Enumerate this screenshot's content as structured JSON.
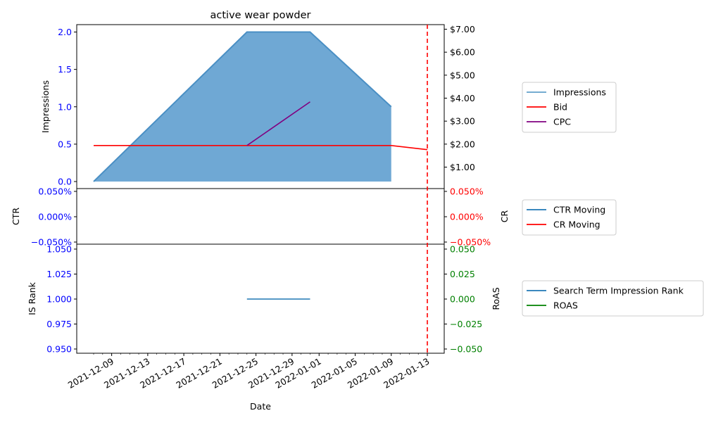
{
  "chart_data": [
    {
      "type": "area",
      "title": "active wear powder",
      "ylabel": "Impressions",
      "y2label": "",
      "ylim": [
        0,
        2.1
      ],
      "y2lim": [
        0.5,
        7.1
      ],
      "y_ticks": [
        "0.0",
        "0.5",
        "1.0",
        "1.5",
        "2.0"
      ],
      "y2_ticks": [
        "$1.00",
        "$2.00",
        "$3.00",
        "$4.00",
        "$5.00",
        "$6.00",
        "$7.00"
      ],
      "x": [
        "2021-12-07",
        "2021-12-24",
        "2021-12-31",
        "2022-01-09"
      ],
      "series": [
        {
          "name": "Impressions",
          "axis": "left",
          "color": "#1f77b4",
          "points": [
            [
              "2021-12-07",
              0
            ],
            [
              "2021-12-24",
              2
            ],
            [
              "2021-12-31",
              2
            ],
            [
              "2022-01-09",
              1
            ]
          ]
        },
        {
          "name": "Bid",
          "axis": "right",
          "color": "#ff0000",
          "points": [
            [
              "2021-12-07",
              1.94
            ],
            [
              "2022-01-09",
              1.94
            ],
            [
              "2022-01-13",
              1.76
            ]
          ]
        },
        {
          "name": "CPC",
          "axis": "right",
          "color": "#800080",
          "points": [
            [
              "2021-12-24",
              1.94
            ],
            [
              "2021-12-31",
              3.84
            ]
          ]
        }
      ],
      "legend": [
        "Impressions",
        "Bid",
        "CPC"
      ],
      "legend_position": "outside-right",
      "marker_date": "2022-01-13"
    },
    {
      "type": "line",
      "ylabel": "CTR",
      "y2label": "CR",
      "ylim": [
        -0.0005,
        0.0005
      ],
      "y_ticks": [
        "0.050%",
        "0.000%",
        "−0.050%"
      ],
      "y2_ticks": [
        "0.050%",
        "0.000%",
        "−0.050%"
      ],
      "series": [
        {
          "name": "CTR Moving",
          "axis": "left",
          "color": "#1f77b4",
          "points": []
        },
        {
          "name": "CR Moving",
          "axis": "right",
          "color": "#ff0000",
          "points": []
        }
      ],
      "legend": [
        "CTR Moving",
        "CR Moving"
      ],
      "legend_position": "outside-right",
      "marker_date": "2022-01-13"
    },
    {
      "type": "line",
      "ylabel": "IS Rank",
      "y2label": "RoAS",
      "xlabel": "Date",
      "ylim": [
        0.945,
        1.055
      ],
      "y2lim": [
        -0.055,
        0.055
      ],
      "y_ticks": [
        "1.050",
        "1.025",
        "1.000",
        "0.975",
        "0.950"
      ],
      "y2_ticks": [
        "0.050",
        "0.025",
        "0.000",
        "−0.025",
        "−0.050"
      ],
      "x_ticks": [
        "2021-12-09",
        "2021-12-13",
        "2021-12-17",
        "2021-12-21",
        "2021-12-25",
        "2021-12-29",
        "2022-01-01",
        "2022-01-05",
        "2022-01-09",
        "2022-01-13"
      ],
      "series": [
        {
          "name": "Search Term Impression Rank",
          "axis": "left",
          "color": "#1f77b4",
          "points": [
            [
              "2021-12-24",
              1.0
            ],
            [
              "2021-12-31",
              1.0
            ]
          ]
        },
        {
          "name": "ROAS",
          "axis": "right",
          "color": "#008000",
          "points": []
        }
      ],
      "legend": [
        "Search Term Impression Rank",
        "ROAS"
      ],
      "legend_position": "outside-right",
      "marker_date": "2022-01-13"
    }
  ],
  "colors": {
    "left_axis": "#0000ff",
    "right_axis_top": "#ff0000",
    "right_axis_mid": "#ff0000",
    "right_axis_bottom": "#008000",
    "area_fill": "#6fa8d4",
    "marker": "#ff0000"
  }
}
